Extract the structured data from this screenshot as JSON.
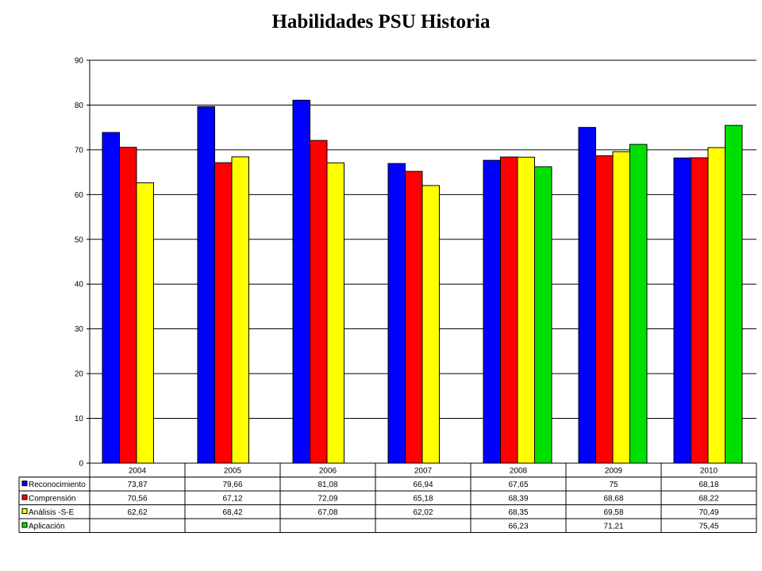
{
  "chart_data": {
    "type": "bar",
    "title": "Habilidades PSU Historia",
    "categories": [
      "2004",
      "2005",
      "2006",
      "2007",
      "2008",
      "2009",
      "2010"
    ],
    "ylim": [
      0,
      90
    ],
    "yticks": [
      0,
      10,
      20,
      30,
      40,
      50,
      60,
      70,
      80,
      90
    ],
    "grid": true,
    "legend": "data-table-below",
    "series": [
      {
        "name": "Reconocimiento",
        "color": "#0000FF",
        "values": [
          73.87,
          79.66,
          81.08,
          66.94,
          67.65,
          75,
          68.18
        ],
        "labels": [
          "73,87",
          "79,66",
          "81,08",
          "66,94",
          "67,65",
          "75",
          "68,18"
        ]
      },
      {
        "name": "Comprensión",
        "color": "#FF0000",
        "values": [
          70.56,
          67.12,
          72.09,
          65.18,
          68.39,
          68.68,
          68.22
        ],
        "labels": [
          "70,56",
          "67,12",
          "72,09",
          "65,18",
          "68,39",
          "68,68",
          "68,22"
        ]
      },
      {
        "name": "Análisis -S-E",
        "color": "#FFFF00",
        "values": [
          62.62,
          68.42,
          67.08,
          62.02,
          68.35,
          69.58,
          70.49
        ],
        "labels": [
          "62,62",
          "68,42",
          "67,08",
          "62,02",
          "68,35",
          "69,58",
          "70,49"
        ]
      },
      {
        "name": "Aplicación",
        "color": "#00E000",
        "values": [
          null,
          null,
          null,
          null,
          66.23,
          71.21,
          75.45
        ],
        "labels": [
          "",
          "",
          "",
          "",
          "66,23",
          "71,21",
          "75,45"
        ]
      }
    ]
  }
}
